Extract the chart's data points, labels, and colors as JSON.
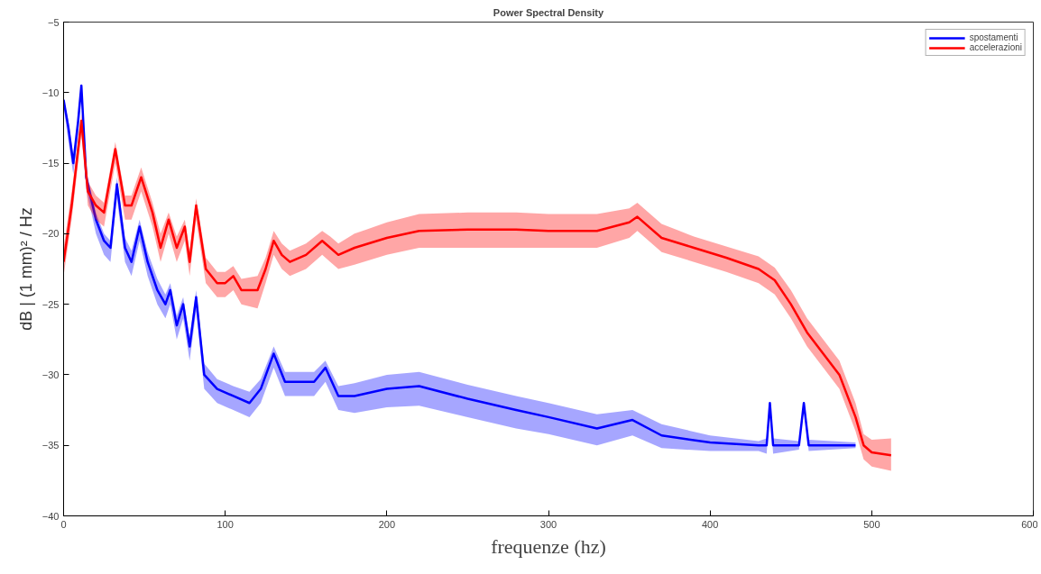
{
  "chart_data": {
    "type": "line",
    "title": "Power Spectral Density",
    "xlabel": "frequenze (hz)",
    "ylabel": "dB | (1 mm)² / Hz",
    "xlim": [
      0,
      600
    ],
    "xticks": [
      0,
      100,
      200,
      300,
      400,
      500,
      600
    ],
    "ylim": [
      -40,
      -5
    ],
    "yticks": [
      -40,
      -35,
      -30,
      -25,
      -20,
      -15,
      -10,
      -5
    ],
    "grid": false,
    "legend": "top right",
    "line_style": "solid",
    "marker": "none",
    "series": [
      {
        "name": "spostamenti",
        "color": "#0000ff",
        "x": [
          0,
          3,
          6,
          9,
          11,
          14,
          20,
          25,
          29,
          33,
          38,
          42,
          47,
          52,
          58,
          63,
          66,
          70,
          74,
          78,
          82,
          87,
          95,
          105,
          115,
          122,
          130,
          137,
          145,
          155,
          162,
          170,
          180,
          200,
          220,
          250,
          280,
          300,
          330,
          352,
          370,
          400,
          430,
          435,
          437,
          439,
          455,
          458,
          461,
          490
        ],
        "values": [
          -10.5,
          -12.5,
          -15,
          -12,
          -9.5,
          -16,
          -19,
          -20.5,
          -21,
          -16.5,
          -21,
          -22,
          -19.5,
          -22,
          -24,
          -25,
          -24,
          -26.5,
          -25,
          -28,
          -24.5,
          -30,
          -31,
          -31.5,
          -32,
          -31,
          -28.5,
          -30.5,
          -30.5,
          -30.5,
          -29.5,
          -31.5,
          -31.5,
          -31,
          -30.8,
          -31.7,
          -32.5,
          -33,
          -33.8,
          -33.2,
          -34.3,
          -34.8,
          -35,
          -35,
          -32,
          -35,
          -35,
          -32,
          -35,
          -35
        ],
        "lower": [
          -11,
          -13.5,
          -15.8,
          -13,
          -10,
          -16.8,
          -20,
          -21.5,
          -22,
          -17.5,
          -22,
          -23,
          -20.5,
          -23,
          -25,
          -26,
          -25,
          -27.5,
          -26,
          -29,
          -25.5,
          -31,
          -32,
          -32.5,
          -33,
          -32,
          -29.5,
          -31.5,
          -31.5,
          -31.5,
          -30.5,
          -32.5,
          -32.7,
          -32.3,
          -32.2,
          -33,
          -33.8,
          -34.2,
          -35,
          -34.3,
          -35.2,
          -35.4,
          -35.4,
          -35.6,
          -32.3,
          -35.6,
          -35.3,
          -32.3,
          -35.4,
          -35.2
        ],
        "upper": [
          -10.5,
          -12,
          -14.5,
          -12,
          -9.5,
          -15.5,
          -18.5,
          -20,
          -20.5,
          -16,
          -20.3,
          -21.2,
          -19,
          -21.3,
          -23.2,
          -24.3,
          -23.5,
          -25.8,
          -24.5,
          -27.3,
          -24,
          -29.2,
          -30.3,
          -30.8,
          -31.2,
          -30.3,
          -28,
          -29.8,
          -29.8,
          -29.8,
          -29,
          -30.8,
          -30.6,
          -30,
          -29.8,
          -30.7,
          -31.5,
          -32,
          -32.8,
          -32.5,
          -33.5,
          -34.3,
          -34.7,
          -34.5,
          -32,
          -34.5,
          -34.7,
          -32,
          -34.6,
          -34.8
        ]
      },
      {
        "name": "accelerazioni",
        "color": "#ff0000",
        "x": [
          0,
          5,
          10,
          11,
          15,
          20,
          25,
          32,
          38,
          42,
          48,
          55,
          60,
          65,
          70,
          75,
          78,
          82,
          88,
          95,
          100,
          105,
          110,
          120,
          125,
          130,
          135,
          140,
          150,
          160,
          165,
          170,
          180,
          200,
          220,
          250,
          280,
          300,
          330,
          350,
          355,
          370,
          390,
          410,
          430,
          440,
          450,
          460,
          470,
          480,
          490,
          495,
          500,
          512
        ],
        "values": [
          -22,
          -18,
          -13,
          -12,
          -17,
          -18,
          -18.5,
          -14,
          -18,
          -18,
          -16,
          -18.5,
          -21,
          -19,
          -21,
          -19.5,
          -22,
          -18,
          -22.5,
          -23.5,
          -23.5,
          -23,
          -24,
          -24,
          -22.5,
          -20.5,
          -21.5,
          -22,
          -21.5,
          -20.5,
          -21,
          -21.5,
          -21,
          -20.3,
          -19.8,
          -19.7,
          -19.7,
          -19.8,
          -19.8,
          -19.2,
          -18.8,
          -20.3,
          -21,
          -21.7,
          -22.5,
          -23.3,
          -25,
          -27,
          -28.5,
          -30,
          -33,
          -35,
          -35.5,
          -35.7
        ],
        "lower": [
          -23,
          -19,
          -14,
          -13,
          -18,
          -19,
          -19.5,
          -15,
          -19,
          -19,
          -17,
          -19.5,
          -22,
          -20,
          -22,
          -20.5,
          -23,
          -19,
          -23.5,
          -24.5,
          -24.5,
          -24,
          -25,
          -25.3,
          -23.5,
          -21.5,
          -22.5,
          -23,
          -22.5,
          -21.5,
          -22,
          -22.5,
          -22.2,
          -21.5,
          -21,
          -21,
          -21,
          -21,
          -21,
          -20.3,
          -19.8,
          -21.3,
          -22,
          -22.7,
          -23.5,
          -24.3,
          -26,
          -28,
          -29.5,
          -31,
          -34,
          -36,
          -36.5,
          -36.8
        ],
        "upper": [
          -21,
          -17,
          -12.5,
          -11.5,
          -16.3,
          -17.3,
          -17.8,
          -13.5,
          -17.3,
          -17.3,
          -15.3,
          -17.8,
          -20,
          -18.5,
          -20.2,
          -19,
          -21.2,
          -17.5,
          -21.7,
          -22.7,
          -22.7,
          -22.3,
          -23.2,
          -23,
          -21.7,
          -19.8,
          -20.7,
          -21.2,
          -20.7,
          -19.8,
          -20.2,
          -20.7,
          -20,
          -19.2,
          -18.6,
          -18.5,
          -18.5,
          -18.6,
          -18.6,
          -18.2,
          -17.8,
          -19.3,
          -20.2,
          -20.9,
          -21.6,
          -22.4,
          -24,
          -26,
          -27.5,
          -29,
          -32,
          -34.2,
          -34.6,
          -34.5
        ]
      }
    ]
  }
}
